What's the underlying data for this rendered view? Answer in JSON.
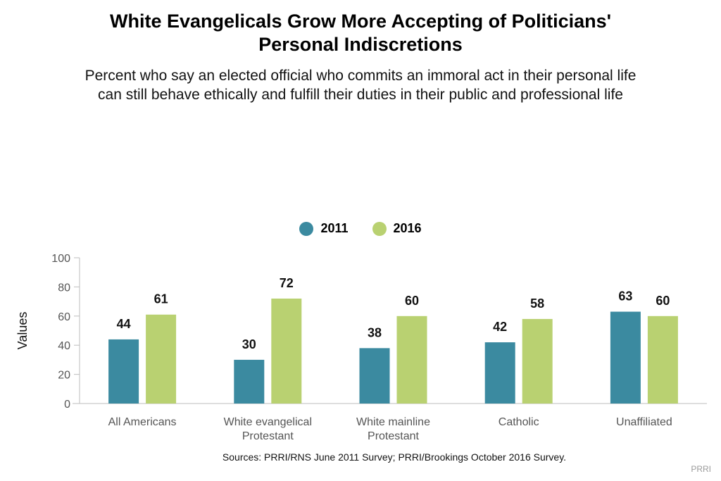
{
  "header": {
    "title_line1": "White Evangelicals Grow More Accepting of Politicians'",
    "title_line2": "Personal Indiscretions",
    "subtitle_line1": "Percent who say an elected official who commits an immoral act in their personal life",
    "subtitle_line2": "can still behave ethically and fulfill their duties in their public and professional life"
  },
  "legend": [
    {
      "label": "2011",
      "color": "#3b8aa0"
    },
    {
      "label": "2016",
      "color": "#b9d171"
    }
  ],
  "chart_data": {
    "type": "bar",
    "categories": [
      [
        "All Americans"
      ],
      [
        "White evangelical",
        "Protestant"
      ],
      [
        "White mainline",
        "Protestant"
      ],
      [
        "Catholic"
      ],
      [
        "Unaffiliated"
      ]
    ],
    "series": [
      {
        "name": "2011",
        "color": "#3b8aa0",
        "values": [
          44,
          30,
          38,
          42,
          63
        ]
      },
      {
        "name": "2016",
        "color": "#b9d171",
        "values": [
          61,
          72,
          60,
          58,
          60
        ]
      }
    ],
    "ylabel": "Values",
    "ylim": [
      0,
      100
    ],
    "yticks": [
      0,
      20,
      40,
      60,
      80,
      100
    ],
    "grid": false,
    "legend_position": "top-center",
    "data_labels": true
  },
  "footer": {
    "source": "Sources: PRRI/RNS June 2011 Survey; PRRI/Brookings October 2016 Survey.",
    "brand": "PRRI"
  }
}
